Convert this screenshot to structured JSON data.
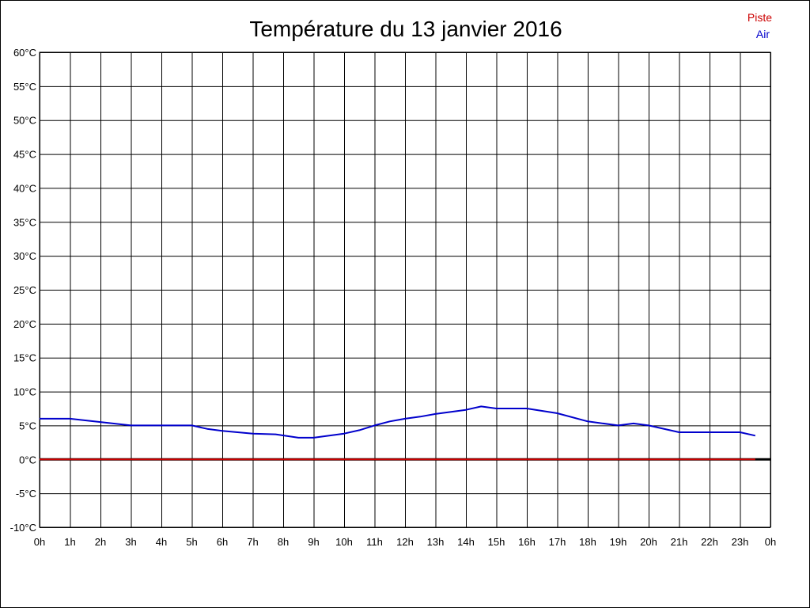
{
  "chart_data": {
    "type": "line",
    "title": "Température du 13 janvier 2016",
    "xlabel": "",
    "ylabel": "",
    "ylim": [
      -10,
      60
    ],
    "xlim": [
      0,
      24
    ],
    "grid": true,
    "legend_position": "top-right",
    "x_tick_labels": [
      "0h",
      "1h",
      "2h",
      "3h",
      "4h",
      "5h",
      "6h",
      "7h",
      "8h",
      "9h",
      "10h",
      "11h",
      "12h",
      "13h",
      "14h",
      "15h",
      "16h",
      "17h",
      "18h",
      "19h",
      "20h",
      "21h",
      "22h",
      "23h",
      "0h"
    ],
    "y_tick_labels": [
      "-10°C",
      "-5°C",
      "0°C",
      "5°C",
      "10°C",
      "15°C",
      "20°C",
      "25°C",
      "30°C",
      "35°C",
      "40°C",
      "45°C",
      "50°C",
      "55°C",
      "60°C"
    ],
    "y_tick_values": [
      -10,
      -5,
      0,
      5,
      10,
      15,
      20,
      25,
      30,
      35,
      40,
      45,
      50,
      55,
      60
    ],
    "series": [
      {
        "name": "Piste",
        "color": "#cc0000",
        "x": [
          0,
          23.5
        ],
        "y": [
          0,
          0
        ]
      },
      {
        "name": "Air",
        "color": "#0000cc",
        "x": [
          0,
          1,
          2,
          3,
          4,
          5,
          5.5,
          6,
          7,
          7.75,
          8.5,
          9,
          10,
          10.5,
          11,
          11.5,
          12,
          12.5,
          13,
          14,
          14.5,
          15,
          16,
          17,
          18,
          19,
          19.5,
          20,
          21,
          22,
          23,
          23.5
        ],
        "y": [
          6,
          6,
          5.5,
          5,
          5,
          5,
          4.5,
          4.2,
          3.8,
          3.7,
          3.2,
          3.2,
          3.8,
          4.3,
          5,
          5.6,
          6,
          6.3,
          6.7,
          7.3,
          7.8,
          7.5,
          7.5,
          6.8,
          5.6,
          5,
          5.3,
          5,
          4,
          4,
          4,
          3.5
        ]
      }
    ],
    "zero_line_color": "#000000"
  }
}
